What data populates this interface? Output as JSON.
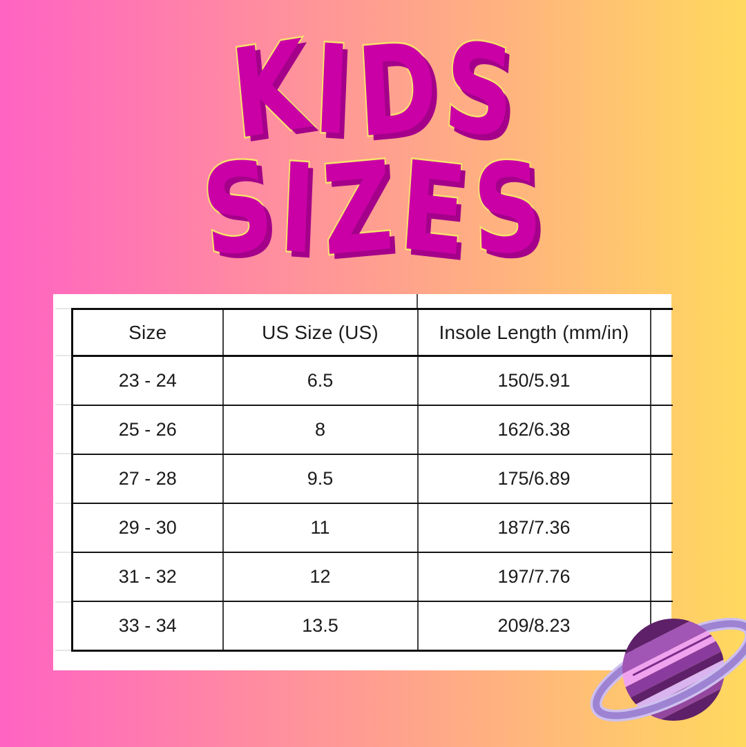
{
  "title": {
    "line1": "KIDS",
    "line2": "SIZES"
  },
  "chart_data": {
    "type": "table",
    "title": "KIDS SIZES",
    "columns": [
      "Size",
      "US Size (US)",
      "Insole Length (mm/in)"
    ],
    "rows": [
      [
        "23 - 24",
        "6.5",
        "150/5.91"
      ],
      [
        "25 - 26",
        "8",
        "162/6.38"
      ],
      [
        "27 - 28",
        "9.5",
        "175/6.89"
      ],
      [
        "29 - 30",
        "11",
        "187/7.36"
      ],
      [
        "31 - 32",
        "12",
        "197/7.76"
      ],
      [
        "33 - 34",
        "13.5",
        "209/8.23"
      ]
    ]
  },
  "colors": {
    "bg_left": "#ff63c3",
    "bg_right": "#ffd95e",
    "title_fill": "#ca00a6",
    "title_outline": "#f8e16d",
    "title_shadow": "#a4008a",
    "panel_bg": "#ffffff",
    "table_border": "#0d0d0d",
    "table_grid": "#3d3d3d",
    "table_text": "#1b1b1b"
  },
  "decor": {
    "planet": {
      "icon": "saturn-planet-icon",
      "ring_edge": "#cfc0ee",
      "ring_main": "#9e83d3",
      "bands": [
        "#5e2068",
        "#a155b4",
        "#f0a2ee",
        "#8a3c9e",
        "#5e2068",
        "#d9b4ef",
        "#93479e",
        "#5e2068"
      ],
      "streaks": [
        "#7b2d8b",
        "#6b2a78"
      ]
    }
  }
}
